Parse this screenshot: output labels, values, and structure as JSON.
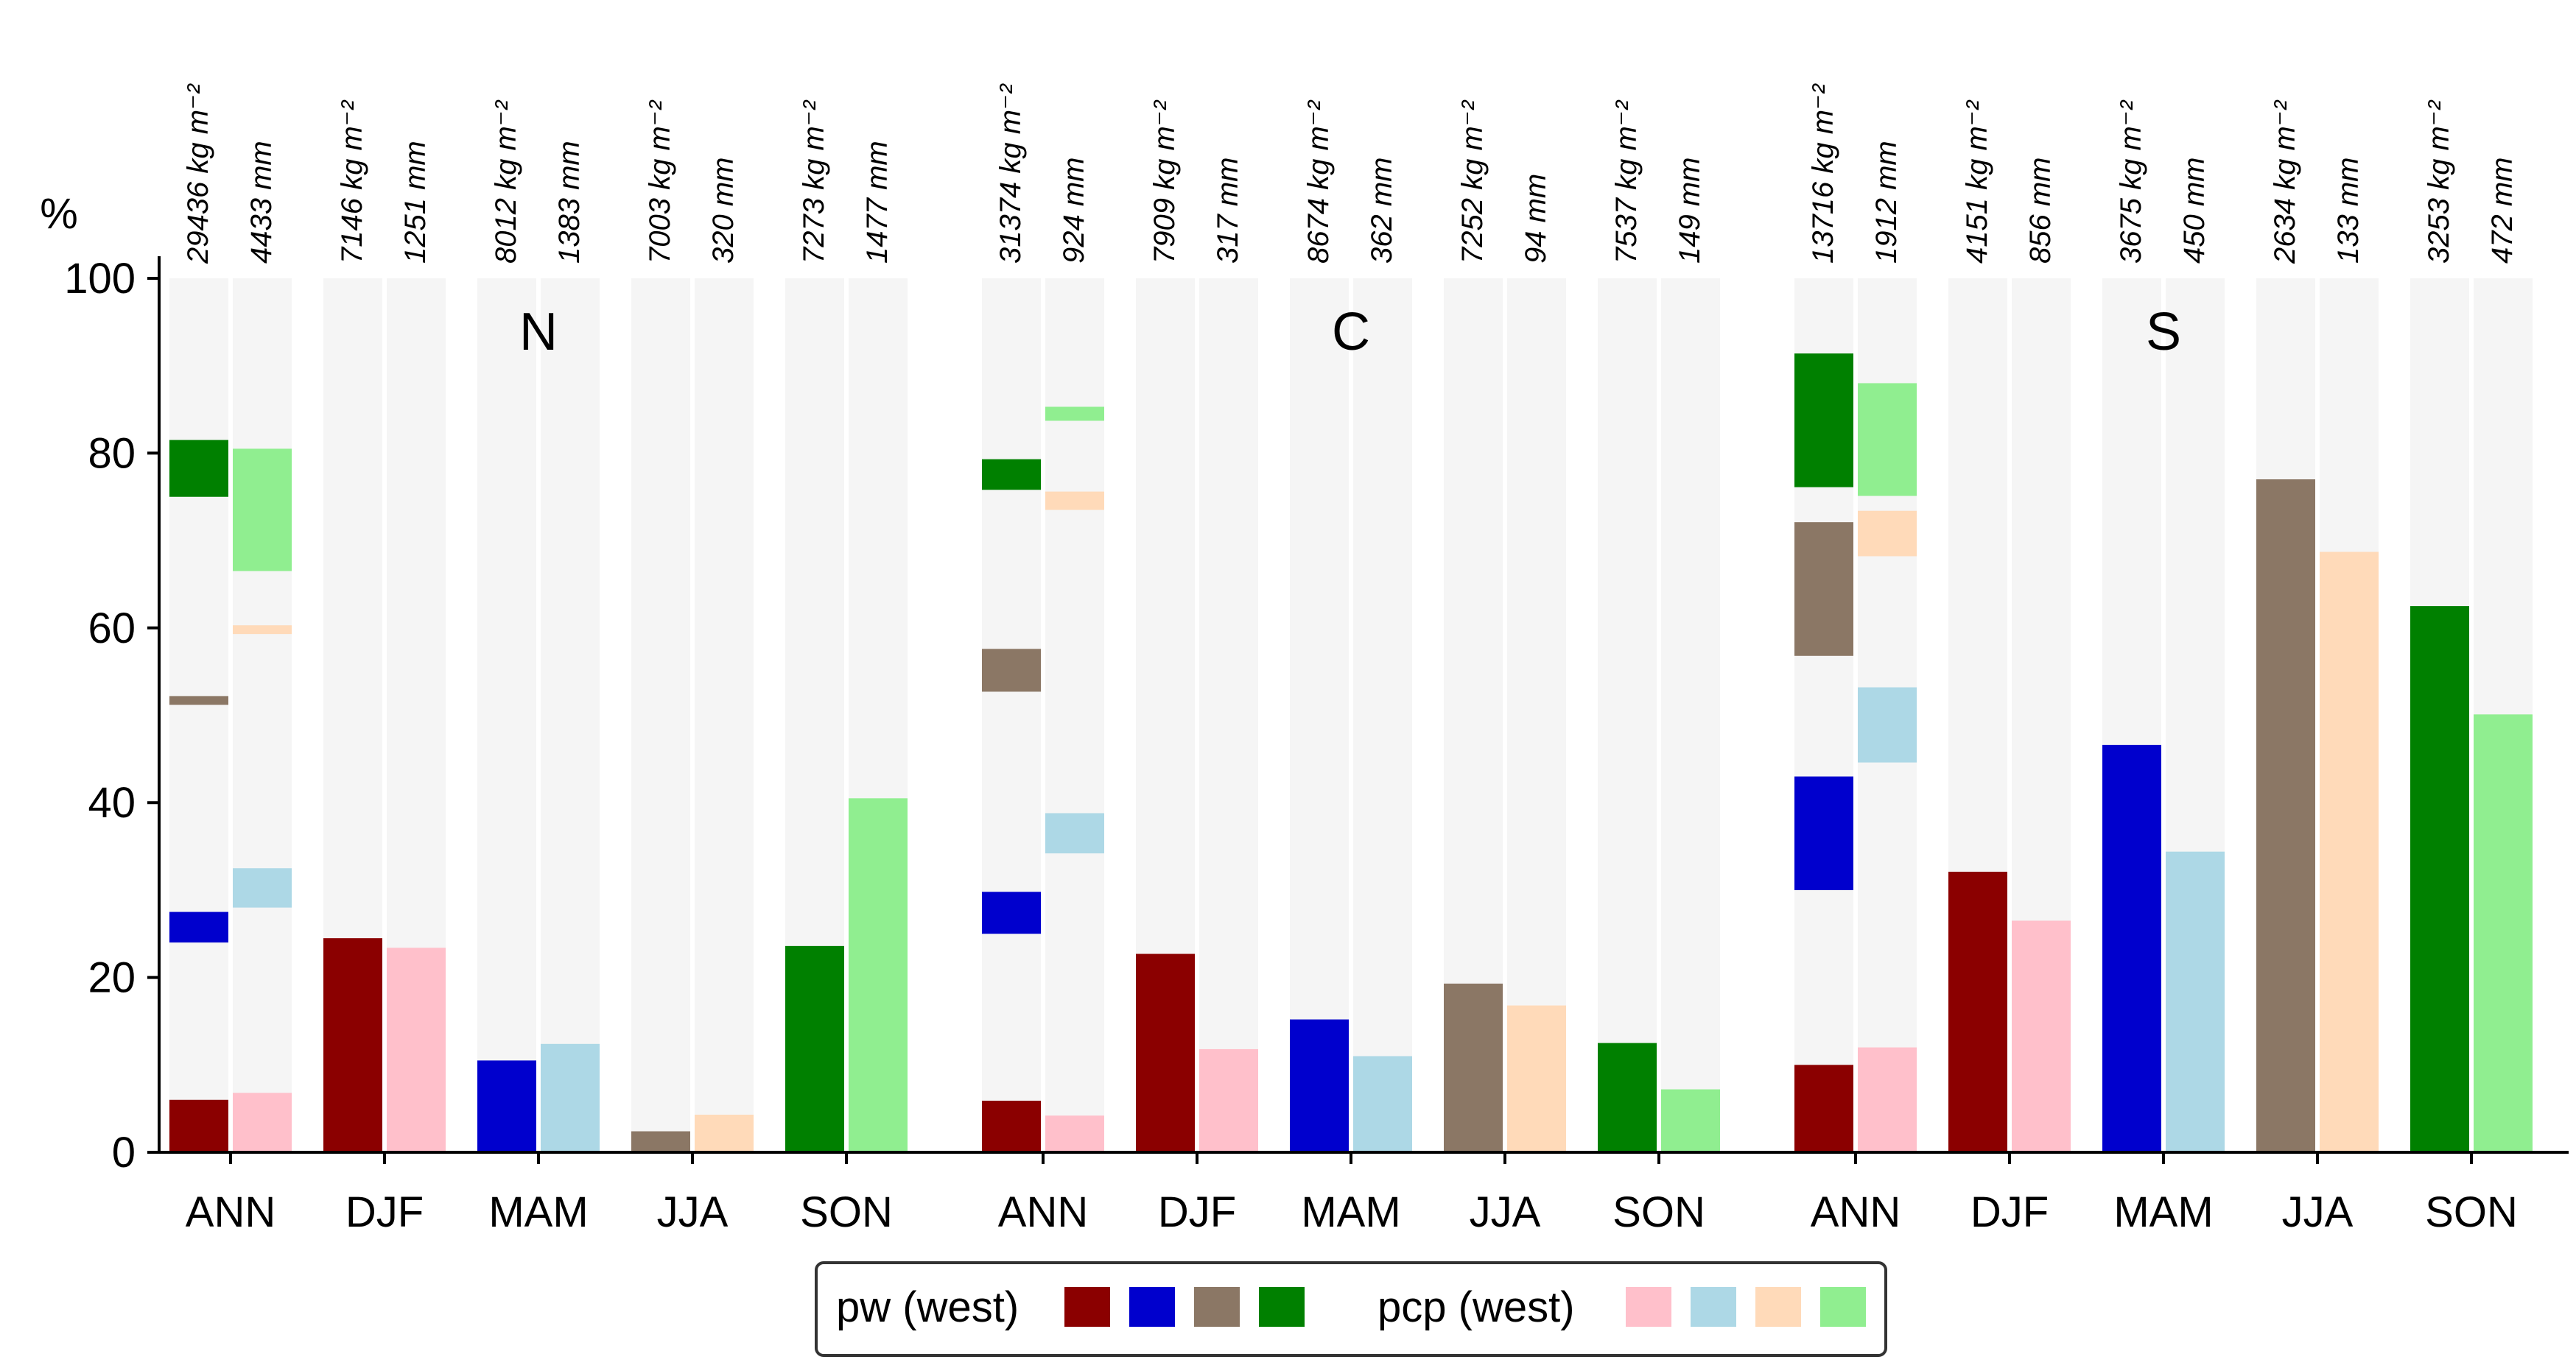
{
  "chart_data": {
    "type": "bar",
    "ylabel": "%",
    "ylim": [
      0,
      100
    ],
    "yticks": [
      0,
      20,
      40,
      60,
      80,
      100
    ],
    "categories": [
      "ANN",
      "DJF",
      "MAM",
      "JJA",
      "SON"
    ],
    "colors": {
      "pw": [
        "#8b0000",
        "#0000cd",
        "#8b7765",
        "#008000"
      ],
      "pcp": [
        "#ffc0cb",
        "#add8e6",
        "#ffdab9",
        "#90ee90"
      ],
      "background": "#f5f5f5"
    },
    "legend": {
      "position": "bottom-center",
      "pw_label": "pw (west)",
      "pcp_label": "pcp (west)"
    },
    "panels": [
      {
        "region": "N",
        "groups": [
          {
            "season": "ANN",
            "pw_total": "29436 kg m⁻²",
            "pcp_total": "4433 mm",
            "pw_segments": [
              [
                0,
                6
              ],
              [
                24,
                27.5
              ],
              [
                51.2,
                52.2
              ],
              [
                75,
                81.5
              ]
            ],
            "pcp_segments": [
              [
                0,
                6.8
              ],
              [
                28,
                32.5
              ],
              [
                59.3,
                60.3
              ],
              [
                66.5,
                80.5
              ]
            ]
          },
          {
            "season": "DJF",
            "pw_total": "7146 kg m⁻²",
            "pcp_total": "1251 mm",
            "pw_value": 24.5,
            "pcp_value": 23.4
          },
          {
            "season": "MAM",
            "pw_total": "8012 kg m⁻²",
            "pcp_total": "1383 mm",
            "pw_value": 10.5,
            "pcp_value": 12.4
          },
          {
            "season": "JJA",
            "pw_total": "7003 kg m⁻²",
            "pcp_total": "320 mm",
            "pw_value": 2.4,
            "pcp_value": 4.3
          },
          {
            "season": "SON",
            "pw_total": "7273 kg m⁻²",
            "pcp_total": "1477 mm",
            "pw_value": 23.6,
            "pcp_value": 40.5
          }
        ]
      },
      {
        "region": "C",
        "groups": [
          {
            "season": "ANN",
            "pw_total": "31374 kg m⁻²",
            "pcp_total": "924 mm",
            "pw_segments": [
              [
                0,
                5.9
              ],
              [
                25,
                29.8
              ],
              [
                52.7,
                57.6
              ],
              [
                75.8,
                79.3
              ]
            ],
            "pcp_segments": [
              [
                0,
                4.2
              ],
              [
                34.2,
                38.8
              ],
              [
                73.5,
                75.6
              ],
              [
                83.7,
                85.3
              ]
            ]
          },
          {
            "season": "DJF",
            "pw_total": "7909 kg m⁻²",
            "pcp_total": "317 mm",
            "pw_value": 22.7,
            "pcp_value": 11.8
          },
          {
            "season": "MAM",
            "pw_total": "8674 kg m⁻²",
            "pcp_total": "362 mm",
            "pw_value": 15.2,
            "pcp_value": 11.0
          },
          {
            "season": "JJA",
            "pw_total": "7252 kg m⁻²",
            "pcp_total": "94 mm",
            "pw_value": 19.3,
            "pcp_value": 16.8
          },
          {
            "season": "SON",
            "pw_total": "7537 kg m⁻²",
            "pcp_total": "149 mm",
            "pw_value": 12.5,
            "pcp_value": 7.2
          }
        ]
      },
      {
        "region": "S",
        "groups": [
          {
            "season": "ANN",
            "pw_total": "13716 kg m⁻²",
            "pcp_total": "1912 mm",
            "pw_segments": [
              [
                0,
                10
              ],
              [
                30,
                43
              ],
              [
                56.8,
                72.1
              ],
              [
                76.1,
                91.4
              ]
            ],
            "pcp_segments": [
              [
                0,
                12
              ],
              [
                44.6,
                53.2
              ],
              [
                68.2,
                73.4
              ],
              [
                75.1,
                88
              ]
            ]
          },
          {
            "season": "DJF",
            "pw_total": "4151 kg m⁻²",
            "pcp_total": "856 mm",
            "pw_value": 32.1,
            "pcp_value": 26.5
          },
          {
            "season": "MAM",
            "pw_total": "3675 kg m⁻²",
            "pcp_total": "450 mm",
            "pw_value": 46.6,
            "pcp_value": 34.4
          },
          {
            "season": "JJA",
            "pw_total": "2634 kg m⁻²",
            "pcp_total": "133 mm",
            "pw_value": 77.0,
            "pcp_value": 68.7
          },
          {
            "season": "SON",
            "pw_total": "3253 kg m⁻²",
            "pcp_total": "472 mm",
            "pw_value": 62.5,
            "pcp_value": 50.1
          }
        ]
      }
    ]
  }
}
